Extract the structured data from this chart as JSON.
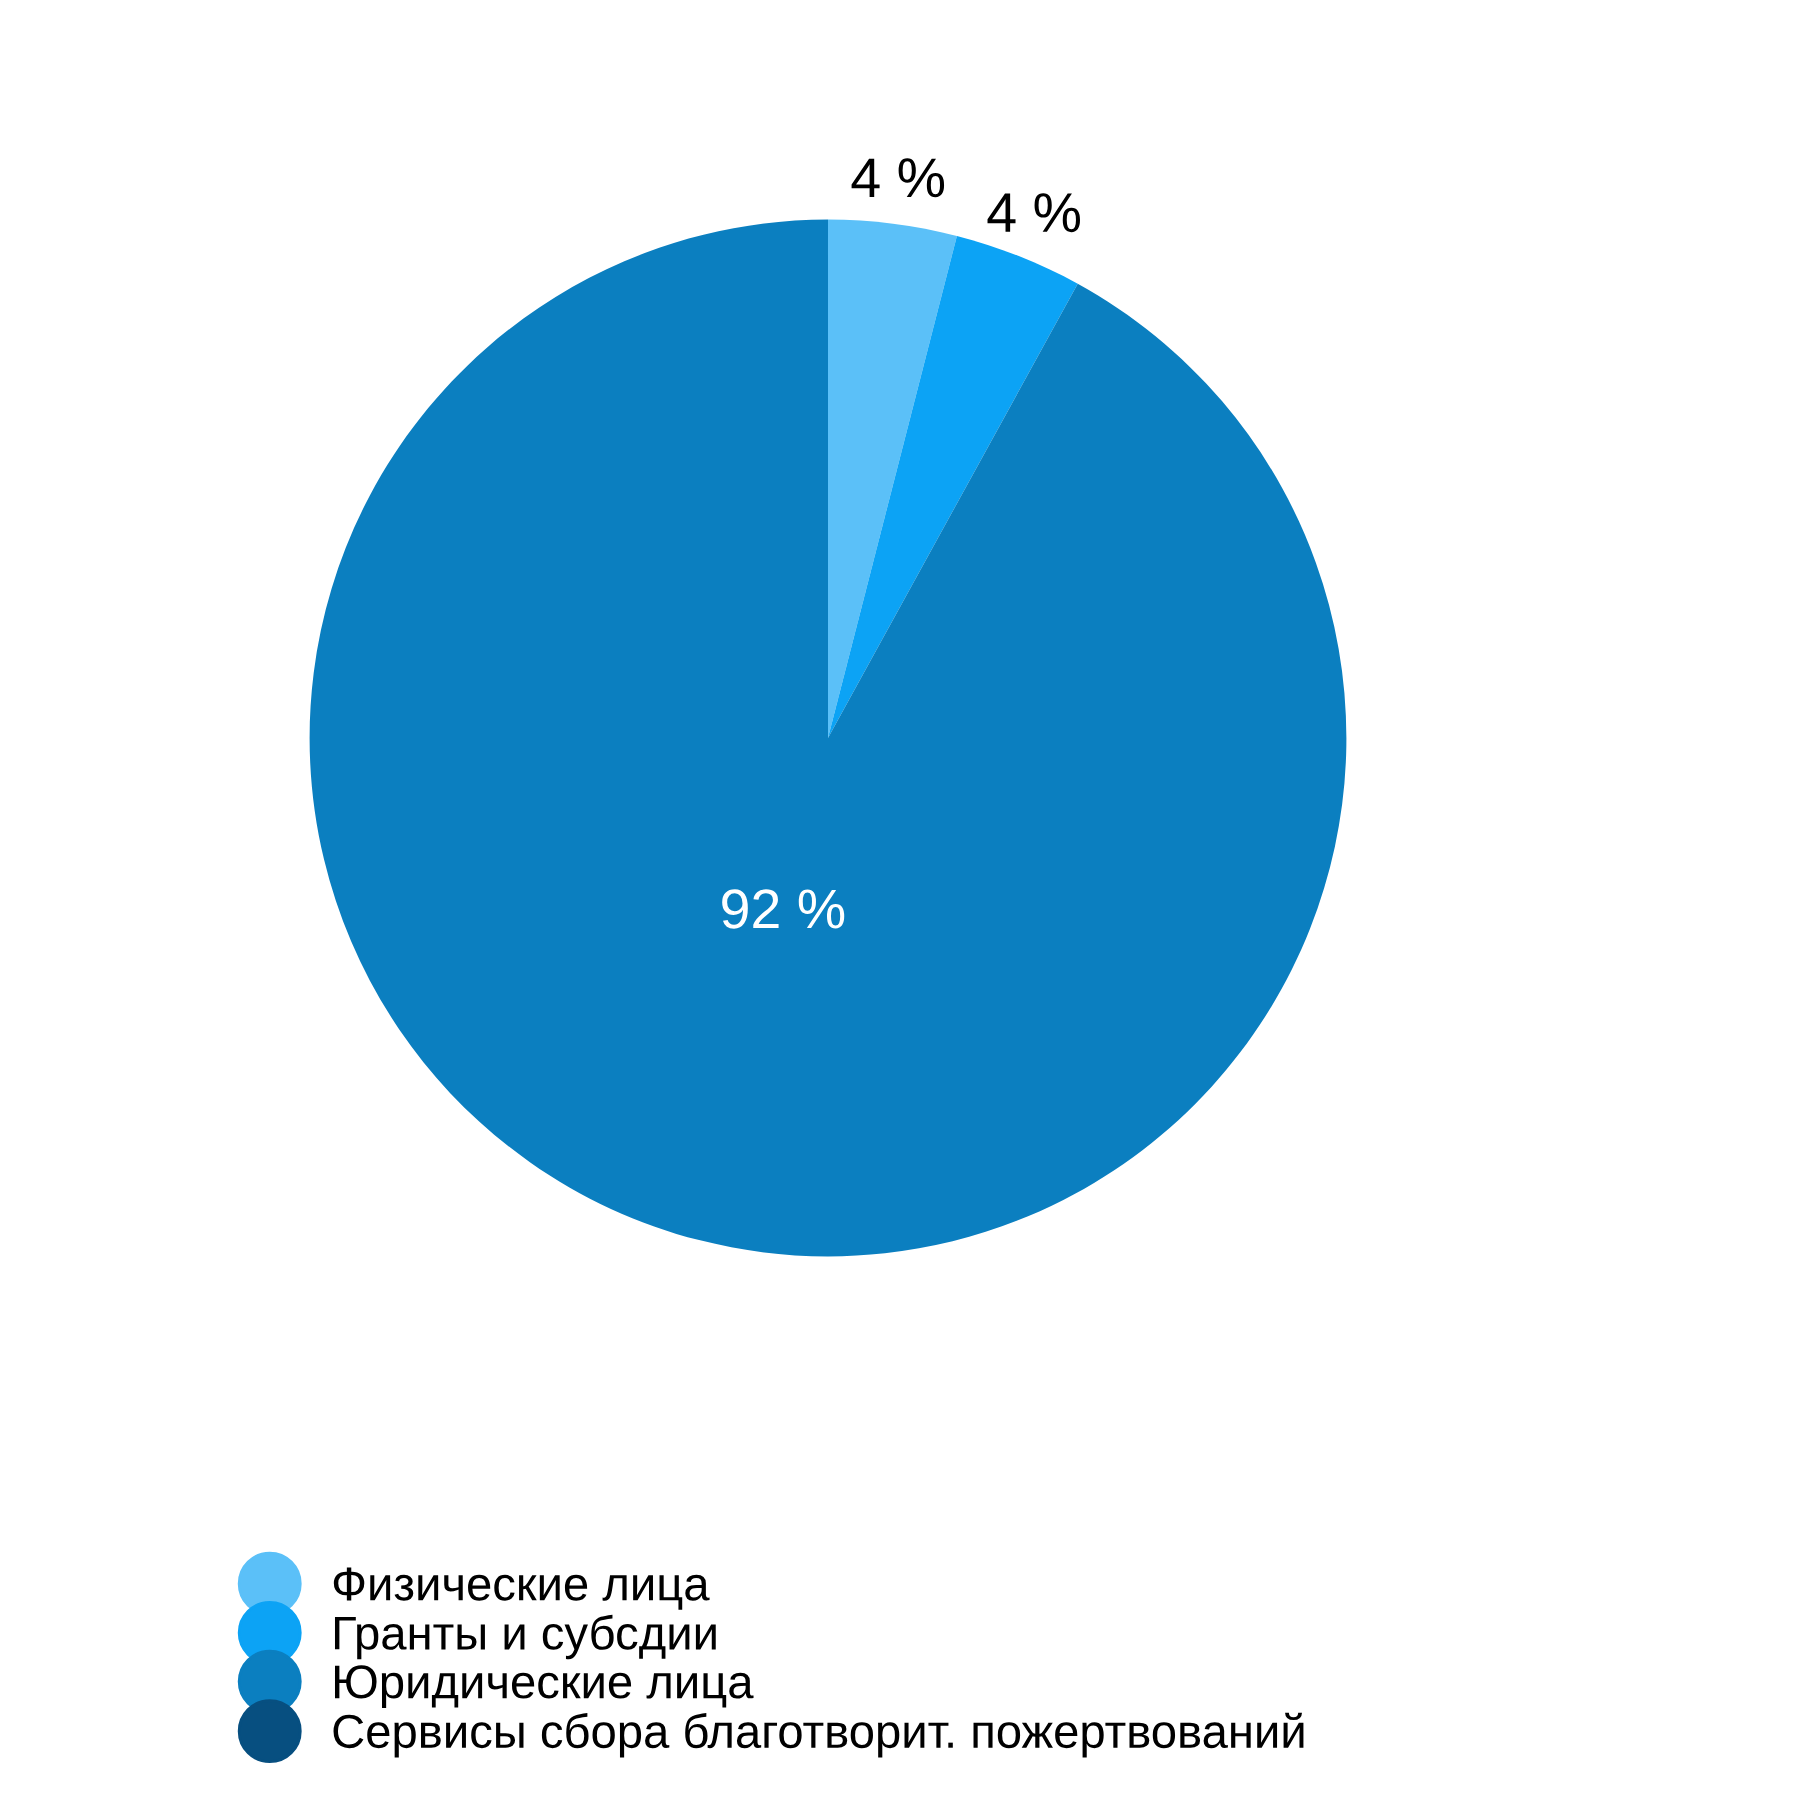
{
  "chart_data": {
    "type": "pie",
    "categories": [
      "Физические лица",
      "Гранты и субсдии",
      "Юридические лица",
      "Сервисы сбора благотворит. пожертвований"
    ],
    "values": [
      4,
      4,
      92,
      0
    ],
    "value_labels": [
      "4 %",
      "4 %",
      "92 %",
      null
    ],
    "colors": [
      "#5bc0f8",
      "#0ca3f5",
      "#0b7fc0",
      "#074f80"
    ],
    "legend": "bottom"
  }
}
